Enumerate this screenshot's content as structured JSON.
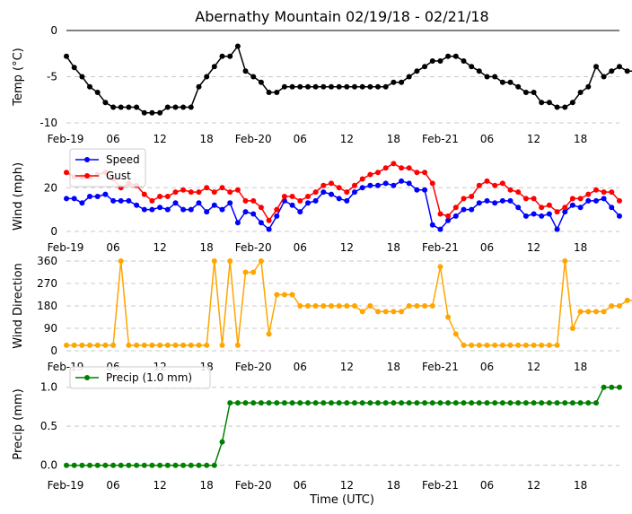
{
  "chart_data": {
    "title": "Abernathy Mountain 02/19/18 - 02/21/18",
    "xlabel": "Time (UTC)",
    "x_tick_labels": [
      "Feb-19",
      "06",
      "12",
      "18",
      "Feb-20",
      "06",
      "12",
      "18",
      "Feb-21",
      "06",
      "12",
      "18"
    ],
    "x_tick_hours": [
      0,
      6,
      12,
      18,
      24,
      30,
      36,
      42,
      48,
      54,
      60,
      66
    ],
    "x_hours_step": 1,
    "panels": [
      {
        "type": "line",
        "ylabel": "Temp (°C)",
        "ylim": [
          -10,
          0
        ],
        "yticks": [
          -10,
          -5,
          0
        ],
        "grid": true,
        "legend": null,
        "series": [
          {
            "name": "",
            "color": "#000000",
            "values": [
              -2.8,
              -4,
              -5,
              -6.1,
              -6.7,
              -7.8,
              -8.3,
              -8.3,
              -8.3,
              -8.3,
              -8.9,
              -8.9,
              -8.9,
              -8.3,
              -8.3,
              -8.3,
              -8.3,
              -6.1,
              -5,
              -3.9,
              -2.8,
              -2.8,
              -1.7,
              -4.4,
              -5,
              -5.6,
              -6.7,
              -6.7,
              -6.1,
              -6.1,
              -6.1,
              -6.1,
              -6.1,
              -6.1,
              -6.1,
              -6.1,
              -6.1,
              -6.1,
              -6.1,
              -6.1,
              -6.1,
              -6.1,
              -5.6,
              -5.6,
              -5,
              -4.4,
              -3.9,
              -3.3,
              -3.3,
              -2.8,
              -2.8,
              -3.3,
              -3.9,
              -4.4,
              -5,
              -5,
              -5.6,
              -5.6,
              -6.1,
              -6.7,
              -6.7,
              -7.8,
              -7.8,
              -8.3,
              -8.3,
              -7.8,
              -6.7,
              -6.1,
              -3.9,
              -5,
              -4.4,
              -3.9,
              -4.4,
              -4.4
            ]
          }
        ]
      },
      {
        "type": "line",
        "ylabel": "Wind (mph)",
        "ylim": [
          0,
          32
        ],
        "yticks": [
          0,
          20
        ],
        "grid": true,
        "legend": "top-left",
        "series": [
          {
            "name": "Speed",
            "color": "#0000ff",
            "values": [
              15,
              15,
              13,
              16,
              16,
              17,
              14,
              14,
              14,
              12,
              10,
              10,
              11,
              10,
              13,
              10,
              10,
              13,
              9,
              12,
              10,
              13,
              4,
              9,
              8,
              4,
              1,
              7,
              14,
              12,
              9,
              13,
              14,
              18,
              17,
              15,
              14,
              18,
              20,
              21,
              21,
              22,
              21,
              23,
              22,
              19,
              19,
              3,
              1,
              5,
              7,
              10,
              10,
              13,
              14,
              13,
              14,
              14,
              11,
              7,
              8,
              7,
              8,
              1,
              9,
              12,
              11,
              14,
              14,
              15,
              11,
              7
            ]
          },
          {
            "name": "Gust",
            "color": "#ff0000",
            "values": [
              27,
              25,
              25,
              25,
              26,
              27,
              24,
              20,
              22,
              21,
              17,
              14,
              16,
              16,
              18,
              19,
              18,
              18,
              20,
              18,
              20,
              18,
              19,
              14,
              14,
              11,
              5,
              10,
              16,
              16,
              14,
              16,
              18,
              21,
              22,
              20,
              18,
              21,
              24,
              26,
              27,
              29,
              31,
              29,
              29,
              27,
              27,
              22,
              8,
              7,
              11,
              15,
              16,
              21,
              23,
              21,
              22,
              19,
              18,
              15,
              15,
              11,
              12,
              9,
              11,
              15,
              15,
              17,
              19,
              18,
              18,
              14
            ]
          }
        ]
      },
      {
        "type": "line",
        "ylabel": "Wind Direction",
        "ylim": [
          0,
          360
        ],
        "yticks": [
          0,
          90,
          180,
          270,
          360
        ],
        "grid": true,
        "legend": null,
        "series": [
          {
            "name": "",
            "color": "#ffa500",
            "values": [
              22,
              22,
              22,
              22,
              22,
              22,
              22,
              360,
              22,
              22,
              22,
              22,
              22,
              22,
              22,
              22,
              22,
              22,
              22,
              360,
              22,
              360,
              22,
              315,
              315,
              360,
              67,
              225,
              225,
              225,
              180,
              180,
              180,
              180,
              180,
              180,
              180,
              180,
              157,
              180,
              157,
              157,
              157,
              157,
              180,
              180,
              180,
              180,
              337,
              135,
              67,
              22,
              22,
              22,
              22,
              22,
              22,
              22,
              22,
              22,
              22,
              22,
              22,
              22,
              360,
              90,
              157,
              157,
              157,
              157,
              180,
              180,
              202,
              202
            ]
          }
        ]
      },
      {
        "type": "line",
        "ylabel": "Precip (mm)",
        "ylim": [
          -0.05,
          1.1
        ],
        "yticks": [
          0.0,
          0.5,
          1.0
        ],
        "ytick_labels": [
          "0.0",
          "0.5",
          "1.0"
        ],
        "grid": true,
        "legend": "top-left",
        "series": [
          {
            "name": "Precip (1.0 mm)",
            "color": "#008000",
            "values": [
              0,
              0,
              0,
              0,
              0,
              0,
              0,
              0,
              0,
              0,
              0,
              0,
              0,
              0,
              0,
              0,
              0,
              0,
              0,
              0,
              0.3,
              0.8,
              0.8,
              0.8,
              0.8,
              0.8,
              0.8,
              0.8,
              0.8,
              0.8,
              0.8,
              0.8,
              0.8,
              0.8,
              0.8,
              0.8,
              0.8,
              0.8,
              0.8,
              0.8,
              0.8,
              0.8,
              0.8,
              0.8,
              0.8,
              0.8,
              0.8,
              0.8,
              0.8,
              0.8,
              0.8,
              0.8,
              0.8,
              0.8,
              0.8,
              0.8,
              0.8,
              0.8,
              0.8,
              0.8,
              0.8,
              0.8,
              0.8,
              0.8,
              0.8,
              0.8,
              0.8,
              0.8,
              0.8,
              1.0,
              1.0,
              1.0
            ]
          }
        ]
      }
    ]
  }
}
